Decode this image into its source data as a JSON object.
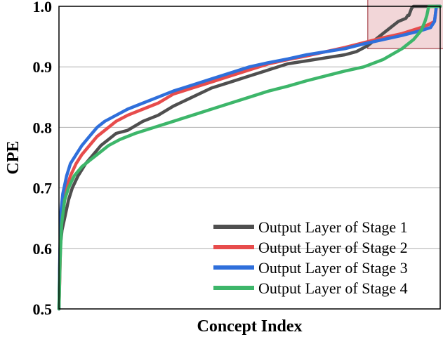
{
  "chart_data": {
    "type": "line",
    "xlabel": "Concept Index",
    "ylabel": "CPE",
    "ylim": [
      0.5,
      1.0
    ],
    "xlim": [
      0,
      1
    ],
    "yticks": [
      "0.5",
      "0.6",
      "0.7",
      "0.8",
      "0.9",
      "1.0"
    ],
    "xticks": [],
    "grid": "horizontal",
    "legend_position": "lower-right",
    "highlight_region": {
      "x": [
        0.81,
        1.01
      ],
      "y": [
        0.93,
        1.016
      ],
      "color": "#d98a8f"
    },
    "series": [
      {
        "name": "Output Layer of Stage 1",
        "color": "#4f4f4f",
        "x": [
          0,
          0.003,
          0.008,
          0.015,
          0.025,
          0.035,
          0.05,
          0.07,
          0.09,
          0.11,
          0.13,
          0.15,
          0.18,
          0.22,
          0.26,
          0.3,
          0.35,
          0.4,
          0.45,
          0.5,
          0.55,
          0.6,
          0.65,
          0.7,
          0.75,
          0.78,
          0.81,
          0.83,
          0.85,
          0.87,
          0.89,
          0.91,
          0.915,
          0.918,
          0.925,
          0.93,
          0.96,
          0.98,
          1.0
        ],
        "values": [
          0.5,
          0.6,
          0.63,
          0.65,
          0.68,
          0.7,
          0.72,
          0.74,
          0.755,
          0.77,
          0.78,
          0.79,
          0.795,
          0.81,
          0.82,
          0.835,
          0.85,
          0.865,
          0.875,
          0.885,
          0.895,
          0.905,
          0.91,
          0.915,
          0.92,
          0.925,
          0.935,
          0.945,
          0.955,
          0.965,
          0.975,
          0.98,
          0.985,
          0.985,
          0.997,
          1.0,
          1.0,
          1.0,
          1.0
        ]
      },
      {
        "name": "Output Layer of Stage 2",
        "color": "#e74c4c",
        "x": [
          0,
          0.002,
          0.005,
          0.01,
          0.02,
          0.03,
          0.045,
          0.06,
          0.08,
          0.1,
          0.12,
          0.15,
          0.18,
          0.22,
          0.26,
          0.3,
          0.35,
          0.4,
          0.45,
          0.5,
          0.55,
          0.6,
          0.65,
          0.7,
          0.75,
          0.8,
          0.85,
          0.9,
          0.95,
          0.97,
          0.985,
          0.99,
          1.0
        ],
        "values": [
          0.5,
          0.55,
          0.63,
          0.67,
          0.7,
          0.72,
          0.74,
          0.755,
          0.77,
          0.785,
          0.795,
          0.81,
          0.82,
          0.83,
          0.84,
          0.855,
          0.865,
          0.875,
          0.885,
          0.895,
          0.905,
          0.912,
          0.918,
          0.925,
          0.932,
          0.94,
          0.948,
          0.955,
          0.965,
          0.97,
          0.975,
          1.0,
          1.0
        ]
      },
      {
        "name": "Output Layer of Stage 3",
        "color": "#2f6fdb",
        "x": [
          0,
          0.002,
          0.005,
          0.01,
          0.02,
          0.03,
          0.045,
          0.06,
          0.08,
          0.1,
          0.12,
          0.15,
          0.18,
          0.22,
          0.26,
          0.3,
          0.35,
          0.4,
          0.45,
          0.5,
          0.55,
          0.6,
          0.65,
          0.7,
          0.75,
          0.8,
          0.85,
          0.9,
          0.95,
          0.975,
          0.985,
          0.99,
          1.0
        ],
        "values": [
          0.5,
          0.58,
          0.66,
          0.69,
          0.72,
          0.74,
          0.755,
          0.77,
          0.785,
          0.8,
          0.81,
          0.82,
          0.83,
          0.84,
          0.85,
          0.86,
          0.87,
          0.88,
          0.89,
          0.9,
          0.907,
          0.913,
          0.92,
          0.925,
          0.93,
          0.938,
          0.945,
          0.952,
          0.96,
          0.965,
          0.975,
          1.0,
          1.0
        ]
      },
      {
        "name": "Output Layer of Stage 4",
        "color": "#3db66a",
        "x": [
          0,
          0.003,
          0.007,
          0.015,
          0.025,
          0.04,
          0.06,
          0.08,
          0.1,
          0.13,
          0.16,
          0.2,
          0.25,
          0.3,
          0.35,
          0.4,
          0.45,
          0.5,
          0.55,
          0.6,
          0.65,
          0.7,
          0.75,
          0.8,
          0.85,
          0.9,
          0.93,
          0.95,
          0.96,
          0.965,
          0.97,
          0.975,
          1.0
        ],
        "values": [
          0.5,
          0.58,
          0.64,
          0.68,
          0.7,
          0.72,
          0.735,
          0.745,
          0.755,
          0.77,
          0.78,
          0.79,
          0.8,
          0.81,
          0.82,
          0.83,
          0.84,
          0.85,
          0.86,
          0.868,
          0.877,
          0.885,
          0.893,
          0.9,
          0.912,
          0.93,
          0.945,
          0.96,
          0.975,
          0.985,
          1.0,
          1.0,
          1.0
        ]
      }
    ]
  }
}
